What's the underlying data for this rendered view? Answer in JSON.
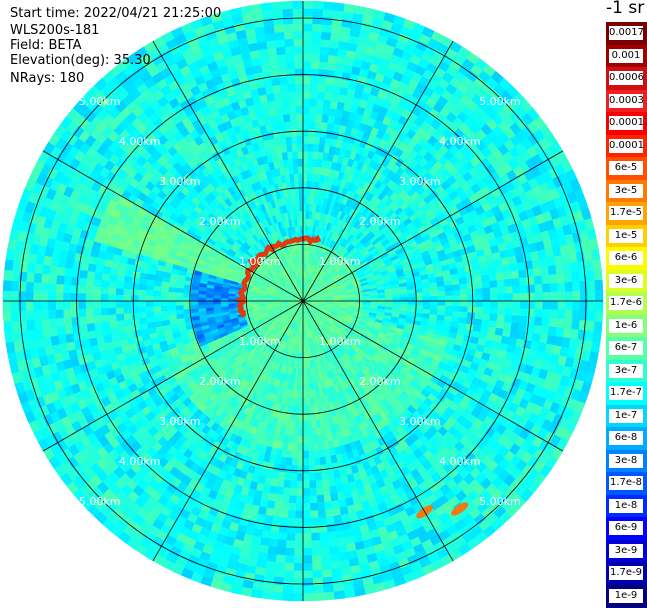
{
  "info": {
    "start_time": "Start time: 2022/04/21 21:25:00",
    "instrument": "WLS200s-181",
    "field": "Field: BETA",
    "elevation": "Elevation(deg): 35.30",
    "nrays": "NRays: 180"
  },
  "colorbar": {
    "unit": "-1 sr",
    "labels": [
      "0.0017",
      "0.001",
      "0.0006",
      "0.0003",
      "0.00017",
      "0.0001",
      "6e-5",
      "3e-5",
      "1.7e-5",
      "1e-5",
      "6e-6",
      "3e-6",
      "1.7e-6",
      "1e-6",
      "6e-7",
      "3e-7",
      "1.7e-7",
      "1e-7",
      "6e-8",
      "3e-8",
      "1.7e-8",
      "1e-8",
      "6e-9",
      "3e-9",
      "1.7e-9",
      "1e-9"
    ]
  },
  "chart_data": {
    "type": "heatmap",
    "projection": "polar-ppi",
    "field": "BETA",
    "elevation_deg": 35.3,
    "n_rays": 180,
    "range_rings_km": [
      1,
      2,
      3,
      4,
      5
    ],
    "ring_labels": [
      "1.00km",
      "2.00km",
      "3.00km",
      "4.00km",
      "5.00km"
    ],
    "spokes_deg": [
      0,
      30,
      60,
      90,
      120,
      150,
      180,
      210,
      240,
      270,
      300,
      330
    ],
    "colorscale": "jet-log",
    "value_range": [
      1e-09,
      0.0017
    ],
    "features": [
      {
        "name": "near-range aerosol layer",
        "range_km": [
          0,
          1.0
        ],
        "beta": "1e-6 to 1e-5"
      },
      {
        "name": "cloud/strong return ring",
        "range_km": [
          0.95,
          1.3
        ],
        "beta": "1e-4 to 1e-3"
      },
      {
        "name": "far echoes",
        "range_km": [
          4.0,
          4.7
        ],
        "azimuth_deg": [
          140,
          155
        ],
        "beta": "1e-5 to 1e-4"
      }
    ]
  }
}
